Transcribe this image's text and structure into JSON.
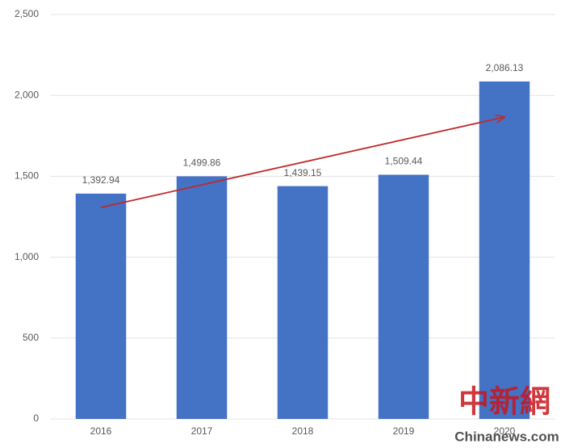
{
  "chart_data": {
    "type": "bar",
    "categories": [
      "2016",
      "2017",
      "2018",
      "2019",
      "2020"
    ],
    "values": [
      1392.94,
      1499.86,
      1439.15,
      1509.44,
      2086.13
    ],
    "value_labels": [
      "1,392.94",
      "1,499.86",
      "1,439.15",
      "1,509.44",
      "2,086.13"
    ],
    "color": "#4472c4",
    "ylim": [
      0,
      2500
    ],
    "yticks": [
      0,
      500,
      {
        "value": 1000,
        "label": "1,000"
      },
      {
        "value": 1500,
        "label": "1,500"
      },
      {
        "value": 2000,
        "label": "2,000"
      },
      {
        "value": 2500,
        "label": "2,500"
      }
    ],
    "grid": true
  },
  "watermark": {
    "logo": "中新網",
    "site": "Chinanews.com"
  }
}
